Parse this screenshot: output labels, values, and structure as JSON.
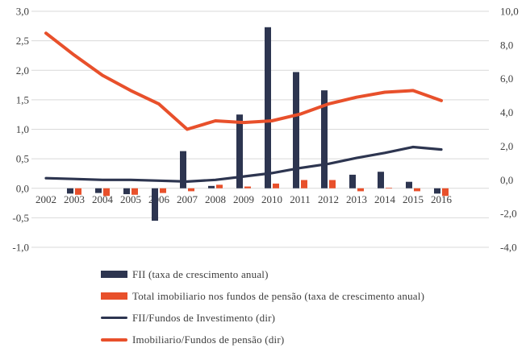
{
  "chart_data": {
    "type": "combo-bar-line",
    "title": "",
    "categories": [
      "2002",
      "2003",
      "2004",
      "2005",
      "2006",
      "2007",
      "2008",
      "2009",
      "2010",
      "2011",
      "2012",
      "2013",
      "2014",
      "2015",
      "2016"
    ],
    "series": [
      {
        "name": "FII (taxa de crescimento anual)",
        "type": "bar",
        "axis": "left",
        "color": "#2d3550",
        "values": [
          0,
          -0.09,
          -0.08,
          -0.1,
          -0.55,
          0.63,
          0.04,
          1.25,
          2.73,
          1.97,
          1.66,
          0.23,
          0.28,
          0.11,
          -0.09
        ]
      },
      {
        "name": "Total imobiliario nos fundos de pensão (taxa de crescimento anual)",
        "type": "bar",
        "axis": "left",
        "color": "#e8502b",
        "values": [
          0,
          -0.11,
          -0.13,
          -0.11,
          -0.08,
          -0.05,
          0.06,
          0.03,
          0.08,
          0.14,
          0.14,
          -0.05,
          0.01,
          -0.05,
          -0.13
        ]
      },
      {
        "name": "FII/Fundos de Investimento (dir)",
        "type": "line",
        "axis": "right",
        "color": "#2d3550",
        "stroke_width": 3.2,
        "values": [
          0.1,
          0.05,
          0.0,
          0.0,
          -0.05,
          -0.1,
          0.0,
          0.2,
          0.4,
          0.7,
          0.95,
          1.3,
          1.6,
          1.95,
          1.8
        ]
      },
      {
        "name": "Imobiliario/Fundos de pensão (dir)",
        "type": "line",
        "axis": "right",
        "color": "#e8502b",
        "stroke_width": 4,
        "values": [
          8.7,
          7.4,
          6.2,
          5.3,
          4.5,
          3.0,
          3.5,
          3.4,
          3.5,
          3.9,
          4.5,
          4.9,
          5.2,
          5.3,
          4.7
        ]
      }
    ],
    "left_axis": {
      "min": -1.0,
      "max": 3.0,
      "step": 0.5,
      "tick_labels": [
        "3,0",
        "2,5",
        "2,0",
        "1,5",
        "1,0",
        "0,5",
        "0,0",
        "-0,5",
        "-1,0"
      ]
    },
    "right_axis": {
      "min": -4.0,
      "max": 10.0,
      "step": 2.0,
      "tick_labels": [
        "10,0",
        "8,0",
        "6,0",
        "4,0",
        "2,0",
        "0,0",
        "-2,0",
        "-4,0"
      ]
    },
    "grid": true,
    "gridline_color": "#d9d9d9",
    "text_color": "#404040",
    "legend_position": "bottom-left"
  }
}
